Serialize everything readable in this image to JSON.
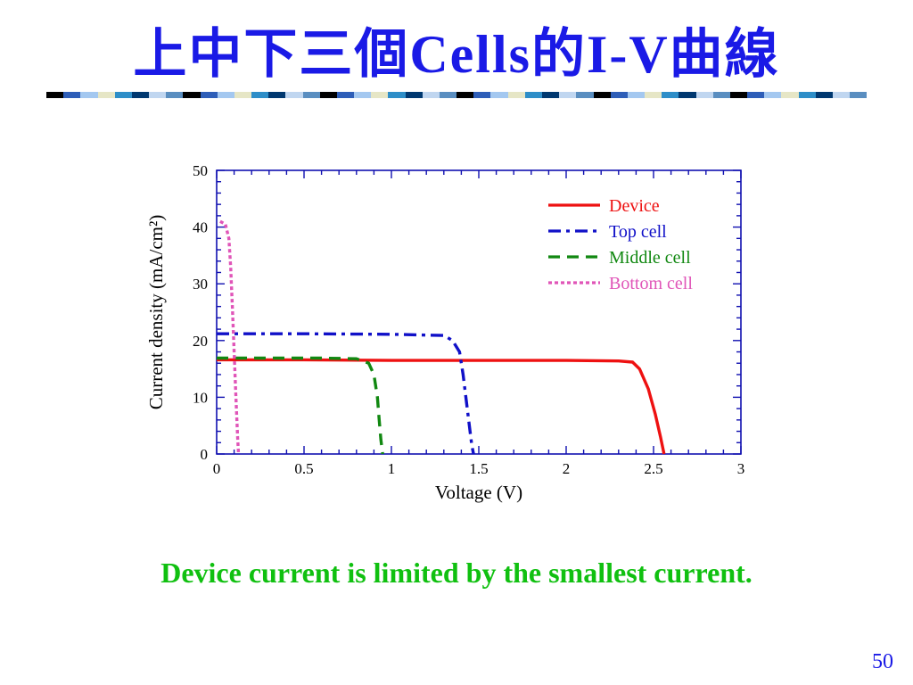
{
  "slide": {
    "title": "上中下三個Cells的I-V曲線",
    "caption": "Device current is limited by the smallest current.",
    "page_number": "50",
    "title_color": "#1a1ae6",
    "caption_color": "#10c010",
    "title_bar_colors": [
      "#000000",
      "#2e5eb8",
      "#a4c8f0",
      "#e6e6c6",
      "#2e8ec8",
      "#003870",
      "#c0d6f0",
      "#5a8ec0"
    ]
  },
  "chart_data": {
    "type": "line",
    "title": "",
    "xlabel": "Voltage (V)",
    "ylabel": "Current density (mA/cm²)",
    "xlim": [
      0,
      3
    ],
    "ylim": [
      0,
      50
    ],
    "xticks": [
      0,
      0.5,
      1,
      1.5,
      2,
      2.5,
      3
    ],
    "xtick_labels": [
      "0",
      "0.5",
      "1",
      "1.5",
      "2",
      "2.5",
      "3"
    ],
    "yticks": [
      0,
      10,
      20,
      30,
      40,
      50
    ],
    "ytick_labels": [
      "0",
      "10",
      "20",
      "30",
      "40",
      "50"
    ],
    "grid": false,
    "legend_position": "top-right",
    "axis_color": "#1010b0",
    "series": [
      {
        "name": "Device",
        "color": "#ee1111",
        "dash": "solid",
        "x": [
          0,
          0.5,
          1.0,
          1.5,
          2.0,
          2.3,
          2.38,
          2.42,
          2.47,
          2.51,
          2.54,
          2.56
        ],
        "y": [
          16.6,
          16.6,
          16.5,
          16.5,
          16.5,
          16.4,
          16.2,
          15.0,
          11.5,
          7.0,
          3.0,
          0
        ]
      },
      {
        "name": "Top cell",
        "color": "#1010c8",
        "dash": "dashdot",
        "x": [
          0,
          0.5,
          1.0,
          1.3,
          1.35,
          1.39,
          1.41,
          1.43,
          1.45,
          1.46,
          1.47
        ],
        "y": [
          21.2,
          21.2,
          21.1,
          20.9,
          20.0,
          18.0,
          14.0,
          9.0,
          4.0,
          1.5,
          0
        ]
      },
      {
        "name": "Middle cell",
        "color": "#118811",
        "dash": "dashed",
        "x": [
          0,
          0.3,
          0.6,
          0.8,
          0.87,
          0.9,
          0.92,
          0.93,
          0.94,
          0.95
        ],
        "y": [
          16.9,
          16.9,
          16.9,
          16.8,
          16.0,
          14.0,
          10.0,
          6.0,
          2.5,
          0
        ]
      },
      {
        "name": "Bottom cell",
        "color": "#e055b8",
        "dash": "dotted",
        "x": [
          0.02,
          0.05,
          0.07,
          0.08,
          0.09,
          0.1,
          0.11,
          0.12,
          0.125
        ],
        "y": [
          41.0,
          40.5,
          38.0,
          33.0,
          26.0,
          18.0,
          10.0,
          3.0,
          0
        ]
      }
    ]
  }
}
